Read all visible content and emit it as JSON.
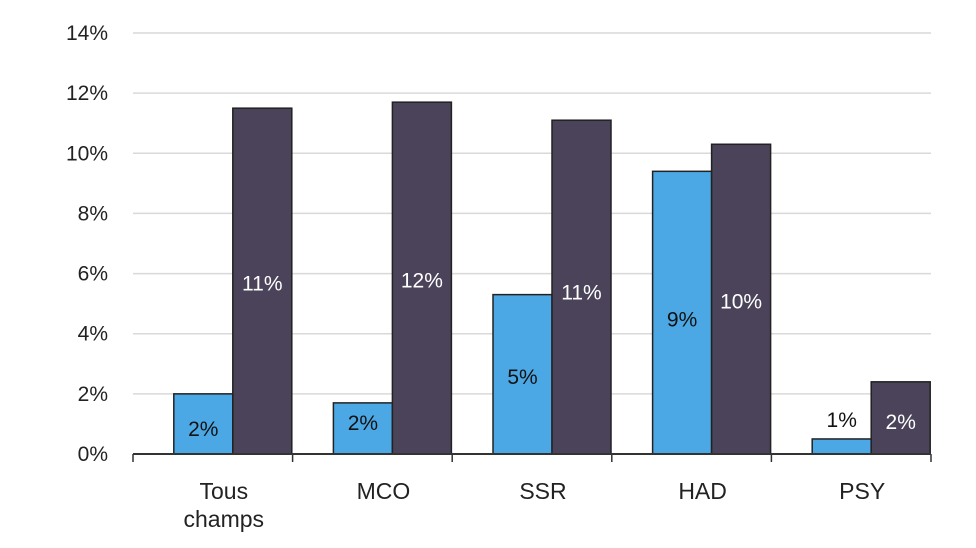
{
  "chart_data": {
    "type": "bar",
    "title": "",
    "xlabel": "",
    "ylabel": "",
    "ylim": [
      0,
      14
    ],
    "y_ticks": [
      "0%",
      "2%",
      "4%",
      "6%",
      "8%",
      "10%",
      "12%",
      "14%"
    ],
    "y_tick_values": [
      0,
      2,
      4,
      6,
      8,
      10,
      12,
      14
    ],
    "grid": true,
    "legend": "none",
    "categories": [
      [
        "Tous",
        "champs"
      ],
      [
        "MCO"
      ],
      [
        "SSR"
      ],
      [
        "HAD"
      ],
      [
        "PSY"
      ]
    ],
    "series": [
      {
        "color": "#4BA8E4",
        "values": [
          2.0,
          1.7,
          5.3,
          9.4,
          0.5
        ],
        "labels": [
          "2%",
          "2%",
          "5%",
          "9%",
          "1%"
        ],
        "label_color": "#111111"
      },
      {
        "color": "#4A4359",
        "values": [
          11.5,
          11.7,
          11.1,
          10.3,
          2.4
        ],
        "labels": [
          "11%",
          "12%",
          "11%",
          "10%",
          "2%"
        ],
        "label_color": "#ffffff"
      }
    ]
  }
}
